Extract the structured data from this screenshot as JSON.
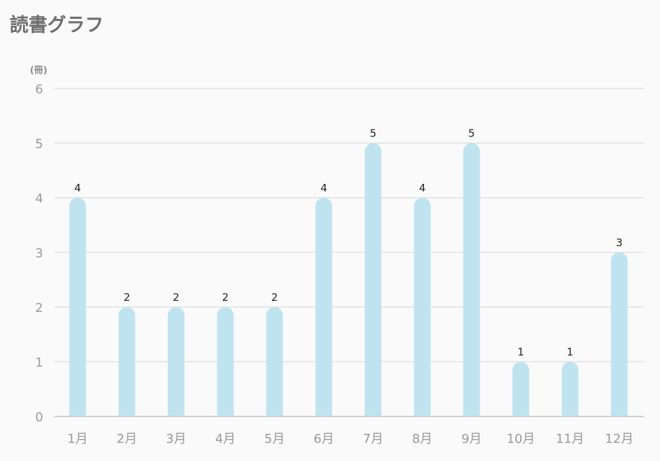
{
  "page": {
    "title": "読書グラフ"
  },
  "colors": {
    "bar": "#bfe4ef",
    "grid": "#e0e0e0",
    "axis": "#cfcfcf"
  },
  "chart_data": {
    "type": "bar",
    "ylabel": "(冊)",
    "categories": [
      "1月",
      "2月",
      "3月",
      "4月",
      "5月",
      "6月",
      "7月",
      "8月",
      "9月",
      "10月",
      "11月",
      "12月"
    ],
    "values": [
      4,
      2,
      2,
      2,
      2,
      4,
      5,
      4,
      5,
      1,
      1,
      3
    ],
    "ylim": [
      0,
      6
    ],
    "yticks": [
      0,
      1,
      2,
      3,
      4,
      5,
      6
    ],
    "grid": true,
    "data_labels": true
  }
}
